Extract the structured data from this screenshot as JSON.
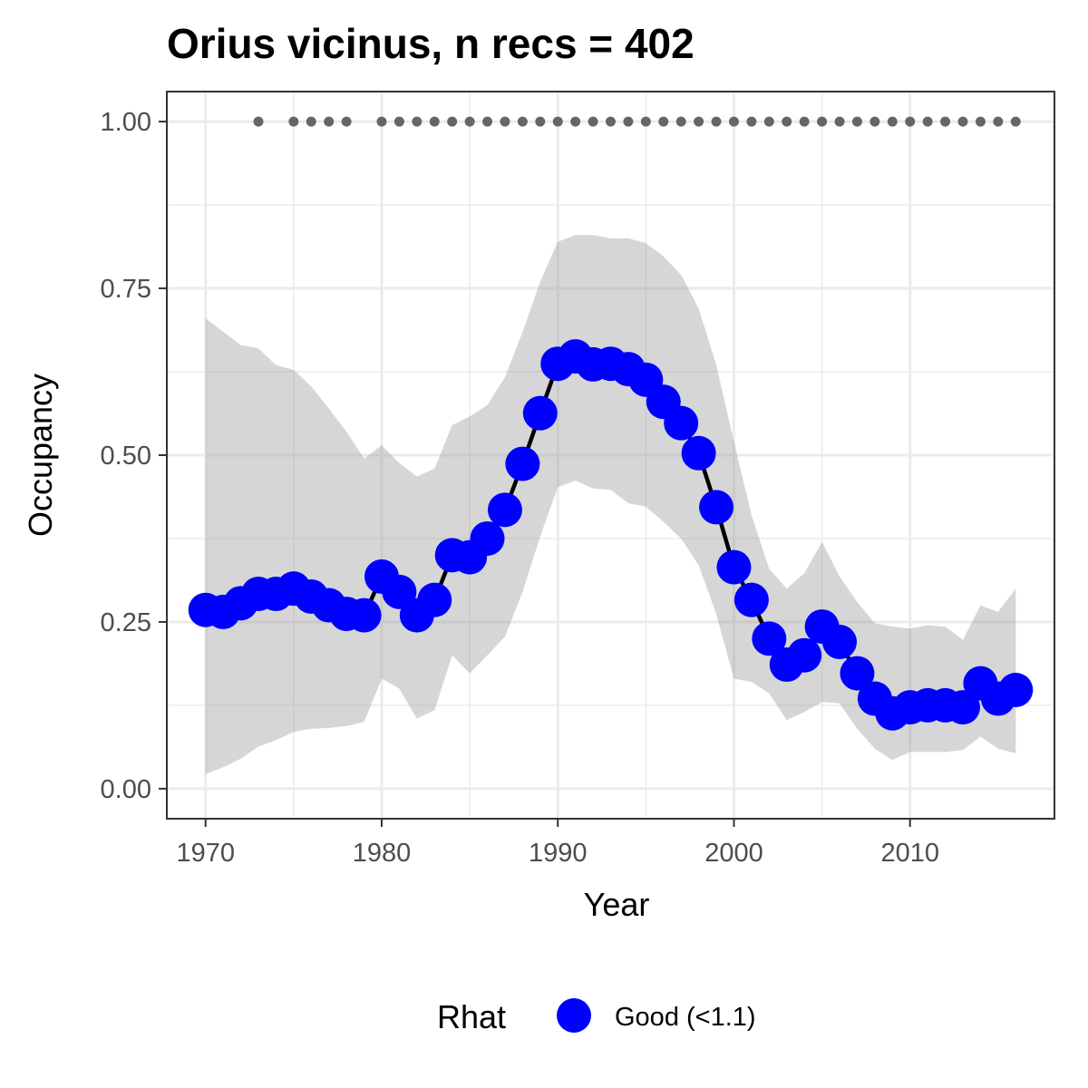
{
  "chart_data": {
    "type": "line",
    "title": "Orius vicinus, n recs = 402",
    "xlabel": "Year",
    "ylabel": "Occupancy",
    "xlim": [
      1967.8,
      2018.2
    ],
    "ylim": [
      -0.045,
      1.045
    ],
    "x_ticks": [
      1970,
      1980,
      1990,
      2000,
      2010
    ],
    "x_tick_labels": [
      "1970",
      "1980",
      "1990",
      "2000",
      "2010"
    ],
    "y_ticks": [
      0,
      0.25,
      0.5,
      0.75,
      1
    ],
    "y_tick_labels": [
      "0.00",
      "0.25",
      "0.50",
      "0.75",
      "1.00"
    ],
    "grid": true,
    "x": [
      1970,
      1971,
      1972,
      1973,
      1974,
      1975,
      1976,
      1977,
      1978,
      1979,
      1980,
      1981,
      1982,
      1983,
      1984,
      1985,
      1986,
      1987,
      1988,
      1989,
      1990,
      1991,
      1992,
      1993,
      1994,
      1995,
      1996,
      1997,
      1998,
      1999,
      2000,
      2001,
      2002,
      2003,
      2004,
      2005,
      2006,
      2007,
      2008,
      2009,
      2010,
      2011,
      2012,
      2013,
      2014,
      2015,
      2016
    ],
    "series": [
      {
        "name": "Good (<1.1)",
        "color": "#0000ff",
        "values": [
          0.268,
          0.265,
          0.278,
          0.292,
          0.292,
          0.3,
          0.288,
          0.275,
          0.262,
          0.26,
          0.318,
          0.295,
          0.26,
          0.283,
          0.35,
          0.347,
          0.375,
          0.418,
          0.487,
          0.563,
          0.637,
          0.648,
          0.636,
          0.637,
          0.629,
          0.613,
          0.58,
          0.548,
          0.503,
          0.422,
          0.332,
          0.283,
          0.225,
          0.186,
          0.2,
          0.243,
          0.22,
          0.173,
          0.135,
          0.113,
          0.122,
          0.125,
          0.125,
          0.122,
          0.158,
          0.135,
          0.148
        ]
      }
    ],
    "ci_lower": [
      0.022,
      0.032,
      0.045,
      0.063,
      0.073,
      0.085,
      0.09,
      0.091,
      0.094,
      0.1,
      0.165,
      0.15,
      0.105,
      0.118,
      0.2,
      0.173,
      0.2,
      0.228,
      0.295,
      0.378,
      0.452,
      0.462,
      0.45,
      0.448,
      0.428,
      0.423,
      0.4,
      0.375,
      0.335,
      0.262,
      0.165,
      0.16,
      0.143,
      0.103,
      0.115,
      0.13,
      0.128,
      0.09,
      0.06,
      0.043,
      0.055,
      0.055,
      0.055,
      0.058,
      0.078,
      0.06,
      0.053
    ],
    "ci_upper": [
      0.705,
      0.685,
      0.665,
      0.66,
      0.635,
      0.628,
      0.603,
      0.57,
      0.535,
      0.495,
      0.515,
      0.488,
      0.468,
      0.48,
      0.545,
      0.558,
      0.575,
      0.617,
      0.685,
      0.76,
      0.82,
      0.83,
      0.83,
      0.825,
      0.825,
      0.818,
      0.798,
      0.77,
      0.72,
      0.635,
      0.52,
      0.41,
      0.33,
      0.3,
      0.323,
      0.37,
      0.318,
      0.28,
      0.248,
      0.243,
      0.24,
      0.245,
      0.243,
      0.223,
      0.275,
      0.265,
      0.3
    ],
    "records_years": [
      1973,
      1975,
      1976,
      1977,
      1978,
      1980,
      1981,
      1982,
      1983,
      1984,
      1985,
      1986,
      1987,
      1988,
      1989,
      1990,
      1991,
      1992,
      1993,
      1994,
      1995,
      1996,
      1997,
      1998,
      1999,
      2000,
      2001,
      2002,
      2003,
      2004,
      2005,
      2006,
      2007,
      2008,
      2009,
      2010,
      2011,
      2012,
      2013,
      2014,
      2015,
      2016
    ],
    "records_level": 1.0,
    "legend": {
      "title": "Rhat",
      "placement": "bottom",
      "entries": [
        "Good (<1.1)"
      ]
    }
  }
}
